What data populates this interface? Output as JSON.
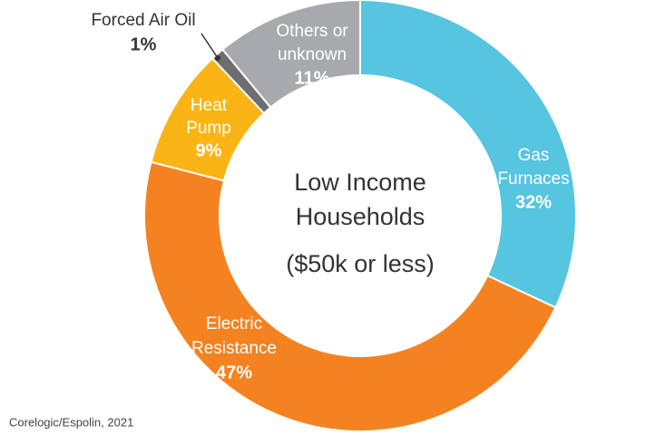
{
  "chart_data": {
    "type": "donut",
    "title": [
      "Low Income",
      "Households"
    ],
    "subtitle": "($50k or less)",
    "categories": [
      [
        "Gas",
        "Furnaces"
      ],
      [
        "Electric",
        "Resistance"
      ],
      [
        "Heat",
        "Pump"
      ],
      [
        "Forced Air Oil"
      ],
      [
        "Others or",
        "unknown"
      ]
    ],
    "values": [
      32,
      47,
      9,
      1,
      11
    ],
    "value_labels": [
      "32%",
      "47%",
      "9%",
      "1%",
      "11%"
    ],
    "colors": [
      "#56c5df",
      "#f58220",
      "#fbb416",
      "#6d6e71",
      "#a7a9ac"
    ],
    "source": "Corelogic/Espolin, 2021"
  }
}
